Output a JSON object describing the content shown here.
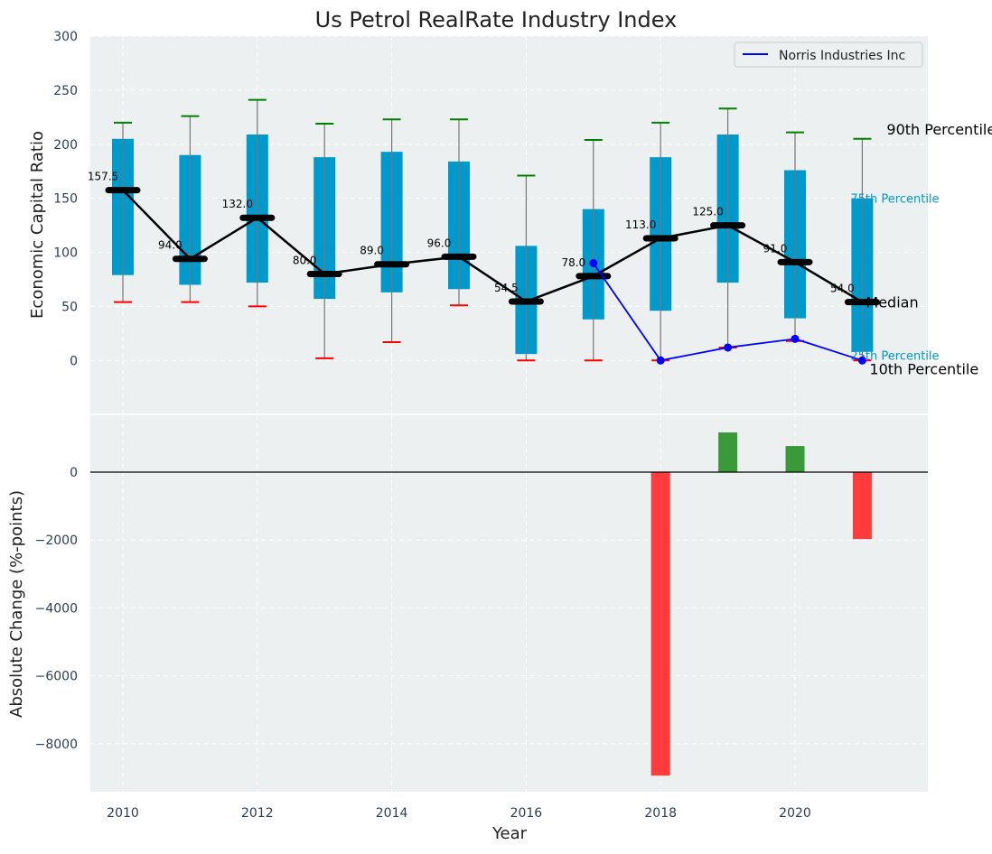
{
  "chart_data": [
    {
      "type": "box-range",
      "title": "Us Petrol RealRate Industry Index",
      "ylabel": "Economic Capital Ratio",
      "ylim": [
        -49,
        300
      ],
      "yticks": [
        0,
        50,
        100,
        150,
        200,
        250,
        300
      ],
      "grid": true,
      "legend": {
        "placement": "top-right",
        "entries": [
          "Norris Industries Inc"
        ]
      },
      "years": [
        2010,
        2011,
        2012,
        2013,
        2014,
        2015,
        2016,
        2017,
        2018,
        2019,
        2020,
        2021
      ],
      "p90": [
        220,
        226,
        241,
        219,
        223,
        223,
        171,
        204,
        220,
        233,
        211,
        205
      ],
      "p75": [
        205,
        190,
        209,
        188,
        193,
        184,
        106,
        140,
        188,
        209,
        176,
        150
      ],
      "median": [
        157.5,
        94.0,
        132.0,
        80.0,
        89.0,
        96.0,
        54.5,
        78.0,
        113.0,
        125.0,
        91.0,
        54.0
      ],
      "median_labels": [
        "157.5",
        "94.0",
        "132.0",
        "80.0",
        "89.0",
        "96.0",
        "54.5",
        "78.0",
        "113.0",
        "125.0",
        "91.0",
        "54.0"
      ],
      "p25": [
        79,
        70,
        72,
        57,
        63,
        66,
        6,
        38,
        46,
        72,
        39,
        8
      ],
      "p10": [
        54,
        54,
        50,
        2,
        17,
        51,
        0,
        0,
        0,
        12,
        18,
        0
      ],
      "company": {
        "name": "Norris Industries Inc",
        "years": [
          2017,
          2018,
          2019,
          2020,
          2021
        ],
        "values": [
          90,
          0,
          12,
          20,
          0
        ]
      },
      "annotations": {
        "p90": "90th Percentile",
        "p75": "75th Percentile",
        "median": "Median",
        "p25": "25th Percentile",
        "p10": "10th Percentile"
      },
      "colors": {
        "box": "#0099cc",
        "p90": "#008000",
        "p10": "#ff0000",
        "median": "#000000",
        "company": "#0000ff",
        "bg": "#ecf0f1"
      }
    },
    {
      "type": "bar",
      "xlabel": "Year",
      "ylabel": "Absolute Change (%-points)",
      "ylim": [
        -9415,
        1676
      ],
      "yticks": [
        0,
        -2000,
        -4000,
        -6000,
        -8000
      ],
      "ytick_labels": [
        "0",
        "−2000",
        "−4000",
        "−6000",
        "−8000"
      ],
      "xticks": [
        2010,
        2012,
        2014,
        2016,
        2018,
        2020
      ],
      "years": [
        2018,
        2019,
        2020,
        2021
      ],
      "values": [
        -8940,
        1170,
        770,
        -1970
      ],
      "colors": {
        "positive": "#3a9a3a",
        "negative": "#ff3b3b"
      }
    }
  ]
}
